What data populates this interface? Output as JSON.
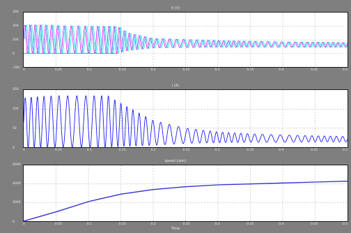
{
  "figure": {
    "background": "#7f7f7f",
    "panels": [
      {
        "title": "V (V)",
        "yticks": [
          "300",
          "200",
          "100",
          "0",
          "-100"
        ],
        "xticks": [
          "0",
          "0.05",
          "0.1",
          "0.15",
          "0.2",
          "0.25",
          "0.3",
          "0.35",
          "0.4",
          "0.45",
          "0.5"
        ],
        "colors": [
          "#ff00ff",
          "#00c8c8",
          "#00e0ff"
        ]
      },
      {
        "title": "i (A)",
        "yticks": [
          "150",
          "100",
          "50",
          "0"
        ],
        "xticks": [
          "0",
          "0.05",
          "0.1",
          "0.15",
          "0.2",
          "0.25",
          "0.3",
          "0.35",
          "0.4",
          "0.45",
          "0.5"
        ],
        "colors": [
          "#1a1aff"
        ]
      },
      {
        "title": "speed (rpm)",
        "yticks": [
          "6000",
          "4000",
          "2000",
          "0"
        ],
        "xticks": [
          "0",
          "0.05",
          "0.1",
          "0.15",
          "0.2",
          "0.25",
          "0.3",
          "0.35",
          "0.4",
          "0.45",
          "0.5"
        ],
        "colors": [
          "#3030d0"
        ]
      }
    ],
    "xlabel": "Time"
  },
  "chart_data": [
    {
      "type": "line",
      "title": "V (V)",
      "xlim": [
        0,
        0.5
      ],
      "ylim": [
        -100,
        300
      ],
      "grid": true,
      "series": [
        {
          "envelope_x": [
            0,
            0.02,
            0.05,
            0.1,
            0.145,
            0.16,
            0.2,
            0.3,
            0.4,
            0.5
          ],
          "upper": [
            210,
            210,
            205,
            200,
            200,
            150,
            110,
            95,
            85,
            80
          ],
          "lower": [
            0,
            0,
            0,
            0,
            0,
            20,
            40,
            45,
            45,
            45
          ]
        }
      ]
    },
    {
      "type": "line",
      "title": "i (A)",
      "xlim": [
        0,
        0.5
      ],
      "ylim": [
        0,
        150
      ],
      "grid": true,
      "series": [
        {
          "envelope_x": [
            0,
            0.05,
            0.1,
            0.13,
            0.15,
            0.2,
            0.25,
            0.3,
            0.35,
            0.4,
            0.45,
            0.5
          ],
          "upper": [
            130,
            135,
            135,
            135,
            115,
            70,
            50,
            40,
            35,
            32,
            30,
            28
          ],
          "lower": [
            0,
            0,
            0,
            0,
            2,
            5,
            10,
            12,
            13,
            13,
            14,
            14
          ]
        }
      ]
    },
    {
      "type": "line",
      "title": "speed (rpm)",
      "xlabel": "Time",
      "xlim": [
        0,
        0.5
      ],
      "ylim": [
        0,
        6000
      ],
      "grid": true,
      "series": [
        {
          "x": [
            0,
            0.05,
            0.1,
            0.15,
            0.2,
            0.25,
            0.3,
            0.35,
            0.4,
            0.45,
            0.5
          ],
          "y": [
            0,
            1000,
            2100,
            2900,
            3400,
            3700,
            3900,
            4000,
            4100,
            4200,
            4300
          ]
        }
      ]
    }
  ]
}
